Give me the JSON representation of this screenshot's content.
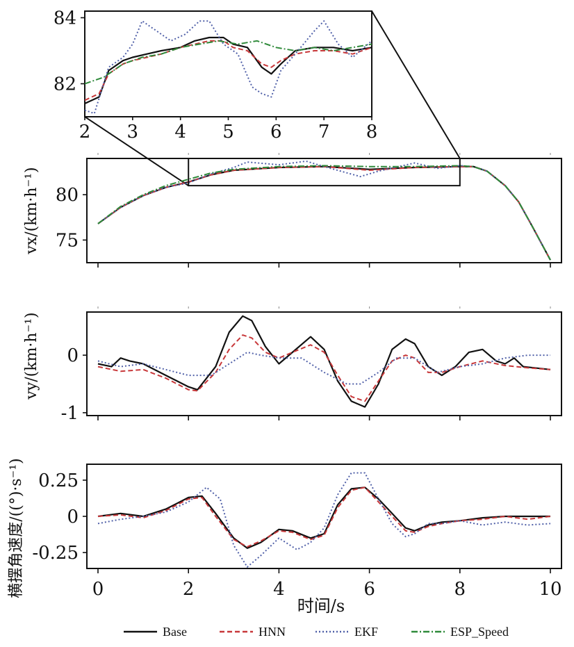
{
  "colors": {
    "Base": "#111111",
    "HNN": "#c8383a",
    "EKF": "#5060a8",
    "ESP_Speed": "#2f8a3a"
  },
  "legend": [
    {
      "name": "Base",
      "style": "solid"
    },
    {
      "name": "HNN",
      "style": "dashed"
    },
    {
      "name": "EKF",
      "style": "dotted"
    },
    {
      "name": "ESP_Speed",
      "style": "dashdot"
    }
  ],
  "xlabel": "时间/s",
  "chart_data": [
    {
      "id": "inset",
      "type": "line",
      "xlim": [
        2,
        8
      ],
      "ylim": [
        81.0,
        84.2
      ],
      "xticks": [
        2,
        3,
        4,
        5,
        6,
        7,
        8
      ],
      "yticks": [
        82,
        84
      ],
      "series": [
        {
          "name": "Base",
          "x": [
            2,
            2.3,
            2.5,
            2.8,
            3.0,
            3.3,
            3.6,
            4.0,
            4.3,
            4.6,
            4.9,
            5.1,
            5.4,
            5.7,
            5.9,
            6.1,
            6.4,
            6.8,
            7.2,
            7.6,
            8.0
          ],
          "y": [
            81.4,
            81.6,
            82.4,
            82.7,
            82.8,
            82.9,
            83.0,
            83.1,
            83.3,
            83.4,
            83.4,
            83.2,
            83.1,
            82.5,
            82.3,
            82.6,
            83.0,
            83.1,
            83.1,
            83.0,
            83.1
          ]
        },
        {
          "name": "HNN",
          "x": [
            2,
            2.3,
            2.5,
            2.8,
            3.0,
            3.3,
            3.6,
            4.0,
            4.3,
            4.6,
            4.9,
            5.1,
            5.4,
            5.7,
            5.9,
            6.1,
            6.4,
            6.8,
            7.2,
            7.6,
            8.0
          ],
          "y": [
            81.5,
            81.7,
            82.3,
            82.6,
            82.7,
            82.8,
            82.9,
            83.1,
            83.2,
            83.3,
            83.3,
            83.1,
            83.0,
            82.6,
            82.5,
            82.7,
            82.9,
            83.0,
            83.0,
            82.9,
            83.1
          ]
        },
        {
          "name": "EKF",
          "x": [
            2,
            2.2,
            2.5,
            2.8,
            3.0,
            3.2,
            3.5,
            3.8,
            4.1,
            4.4,
            4.6,
            4.9,
            5.2,
            5.5,
            5.7,
            5.9,
            6.1,
            6.4,
            6.8,
            7.0,
            7.3,
            7.6,
            8.0
          ],
          "y": [
            81.2,
            81.1,
            82.5,
            82.8,
            83.2,
            83.9,
            83.6,
            83.3,
            83.5,
            83.9,
            83.9,
            83.2,
            82.9,
            81.9,
            81.7,
            81.6,
            82.4,
            82.9,
            83.6,
            83.9,
            83.2,
            82.8,
            83.3
          ]
        },
        {
          "name": "ESP_Speed",
          "x": [
            2,
            2.4,
            2.8,
            3.2,
            3.6,
            4.0,
            4.4,
            4.8,
            5.2,
            5.6,
            6.0,
            6.4,
            6.8,
            7.2,
            7.6,
            8.0
          ],
          "y": [
            82.0,
            82.2,
            82.6,
            82.8,
            82.9,
            83.1,
            83.2,
            83.3,
            83.2,
            83.3,
            83.1,
            83.0,
            83.1,
            83.0,
            83.1,
            83.2
          ]
        }
      ]
    },
    {
      "id": "vx",
      "type": "line",
      "ylabel": "vx/(km·h⁻¹)",
      "xlim": [
        0,
        10
      ],
      "ylim": [
        72.5,
        84.0
      ],
      "yticks": [
        75,
        80
      ],
      "zoom_box": {
        "x": [
          2,
          8
        ],
        "y": [
          81.0,
          84.0
        ]
      },
      "series": [
        {
          "name": "Base",
          "x": [
            0,
            0.5,
            1.0,
            1.5,
            2.0,
            2.5,
            3.0,
            4.0,
            5.0,
            6.0,
            7.0,
            8.0,
            8.3,
            8.6,
            9.0,
            9.3,
            9.6,
            10.0
          ],
          "y": [
            76.8,
            78.6,
            79.9,
            80.8,
            81.4,
            82.2,
            82.7,
            83.0,
            83.1,
            82.8,
            83.0,
            83.1,
            83.1,
            82.6,
            81.0,
            79.2,
            76.5,
            72.8
          ]
        },
        {
          "name": "HNN",
          "x": [
            0,
            0.5,
            1.0,
            1.5,
            2.0,
            2.5,
            3.0,
            4.0,
            5.0,
            6.0,
            7.0,
            8.0,
            8.3,
            8.6,
            9.0,
            9.3,
            9.6,
            10.0
          ],
          "y": [
            76.8,
            78.6,
            79.9,
            80.8,
            81.4,
            82.2,
            82.7,
            83.0,
            83.1,
            82.7,
            83.0,
            83.1,
            83.1,
            82.6,
            81.0,
            79.2,
            76.5,
            72.8
          ]
        },
        {
          "name": "EKF",
          "x": [
            0,
            0.5,
            1.0,
            1.5,
            2.0,
            2.5,
            3.0,
            3.3,
            4.0,
            4.6,
            5.0,
            5.8,
            6.2,
            7.0,
            7.5,
            8.0,
            8.3,
            8.6,
            9.0,
            9.3,
            9.6,
            10.0
          ],
          "y": [
            76.8,
            78.6,
            79.9,
            80.8,
            81.3,
            82.3,
            83.0,
            83.6,
            83.3,
            83.7,
            83.1,
            82.0,
            82.6,
            83.5,
            82.9,
            83.2,
            83.1,
            82.6,
            81.0,
            79.2,
            76.5,
            72.8
          ]
        },
        {
          "name": "ESP_Speed",
          "x": [
            0,
            0.5,
            1.0,
            1.5,
            2.0,
            2.5,
            3.0,
            4.0,
            5.0,
            6.0,
            7.0,
            8.0,
            8.3,
            8.6,
            9.0,
            9.3,
            9.6,
            10.0
          ],
          "y": [
            76.8,
            78.7,
            80.0,
            81.0,
            81.7,
            82.4,
            82.8,
            83.1,
            83.2,
            83.1,
            83.1,
            83.2,
            83.1,
            82.6,
            81.0,
            79.2,
            76.5,
            72.8
          ]
        }
      ]
    },
    {
      "id": "vy",
      "type": "line",
      "ylabel": "vy/(km·h⁻¹)",
      "xlim": [
        0,
        10
      ],
      "ylim": [
        -1.05,
        0.75
      ],
      "yticks": [
        -1,
        0
      ],
      "series": [
        {
          "name": "Base",
          "x": [
            0,
            0.3,
            0.5,
            0.7,
            1.0,
            1.5,
            2.0,
            2.2,
            2.6,
            2.9,
            3.2,
            3.4,
            3.7,
            4.0,
            4.3,
            4.7,
            5.0,
            5.3,
            5.6,
            5.9,
            6.2,
            6.5,
            6.8,
            7.0,
            7.3,
            7.6,
            7.9,
            8.2,
            8.5,
            8.8,
            9.0,
            9.2,
            9.4,
            10.0
          ],
          "y": [
            -0.15,
            -0.2,
            -0.05,
            -0.1,
            -0.15,
            -0.35,
            -0.55,
            -0.6,
            -0.2,
            0.4,
            0.68,
            0.6,
            0.15,
            -0.15,
            0.05,
            0.32,
            0.1,
            -0.45,
            -0.8,
            -0.9,
            -0.5,
            0.1,
            0.28,
            0.2,
            -0.2,
            -0.35,
            -0.2,
            0.05,
            0.1,
            -0.1,
            -0.15,
            -0.05,
            -0.2,
            -0.25
          ]
        },
        {
          "name": "HNN",
          "x": [
            0,
            0.5,
            1.0,
            1.5,
            2.0,
            2.2,
            2.6,
            2.9,
            3.2,
            3.4,
            3.7,
            4.0,
            4.3,
            4.7,
            5.0,
            5.3,
            5.6,
            5.9,
            6.2,
            6.5,
            6.8,
            7.0,
            7.3,
            7.6,
            8.0,
            8.5,
            9.0,
            9.5,
            10.0
          ],
          "y": [
            -0.2,
            -0.28,
            -0.25,
            -0.4,
            -0.6,
            -0.62,
            -0.3,
            0.1,
            0.35,
            0.3,
            0.05,
            -0.05,
            0.05,
            0.18,
            0.05,
            -0.35,
            -0.72,
            -0.8,
            -0.45,
            -0.1,
            0.0,
            -0.05,
            -0.3,
            -0.3,
            -0.2,
            -0.1,
            -0.18,
            -0.22,
            -0.25
          ]
        },
        {
          "name": "EKF",
          "x": [
            0,
            0.5,
            1.0,
            1.5,
            2.0,
            2.5,
            3.0,
            3.3,
            3.6,
            4.0,
            4.5,
            5.0,
            5.5,
            5.8,
            6.2,
            6.6,
            7.0,
            7.5,
            8.0,
            8.5,
            9.0,
            9.5,
            10.0
          ],
          "y": [
            -0.1,
            -0.2,
            -0.15,
            -0.25,
            -0.35,
            -0.35,
            -0.1,
            0.05,
            0.0,
            -0.05,
            -0.05,
            -0.3,
            -0.5,
            -0.5,
            -0.3,
            -0.05,
            -0.05,
            -0.3,
            -0.2,
            -0.15,
            -0.05,
            0.0,
            0.0
          ]
        }
      ]
    },
    {
      "id": "yaw",
      "type": "line",
      "ylabel": "横摆角速度/((°)·s⁻¹)",
      "xlim": [
        0,
        10
      ],
      "xticks": [
        0,
        2,
        4,
        6,
        8,
        10
      ],
      "ylim": [
        -0.36,
        0.36
      ],
      "yticks": [
        -0.25,
        0,
        0.25
      ],
      "yticklabels": [
        "-0.25",
        "0",
        "0.25"
      ],
      "series": [
        {
          "name": "Base",
          "x": [
            0,
            0.5,
            1.0,
            1.5,
            2.0,
            2.3,
            2.6,
            3.0,
            3.3,
            3.6,
            4.0,
            4.3,
            4.7,
            5.0,
            5.3,
            5.6,
            5.9,
            6.2,
            6.5,
            6.8,
            7.0,
            7.3,
            7.6,
            8.0,
            8.5,
            9.0,
            9.5,
            10.0
          ],
          "y": [
            0.0,
            0.02,
            0.0,
            0.05,
            0.13,
            0.14,
            0.02,
            -0.15,
            -0.22,
            -0.18,
            -0.09,
            -0.1,
            -0.15,
            -0.12,
            0.08,
            0.19,
            0.2,
            0.12,
            0.02,
            -0.08,
            -0.1,
            -0.06,
            -0.04,
            -0.03,
            -0.01,
            0.0,
            0.0,
            0.0
          ]
        },
        {
          "name": "HNN",
          "x": [
            0,
            0.5,
            1.0,
            1.5,
            2.0,
            2.3,
            2.6,
            3.0,
            3.3,
            3.6,
            4.0,
            4.3,
            4.7,
            5.0,
            5.3,
            5.6,
            5.9,
            6.2,
            6.5,
            6.8,
            7.0,
            7.3,
            7.6,
            8.0,
            8.5,
            9.0,
            9.5,
            10.0
          ],
          "y": [
            0.0,
            0.01,
            -0.01,
            0.04,
            0.12,
            0.13,
            0.0,
            -0.16,
            -0.21,
            -0.17,
            -0.1,
            -0.11,
            -0.16,
            -0.13,
            0.06,
            0.18,
            0.2,
            0.1,
            0.0,
            -0.1,
            -0.11,
            -0.07,
            -0.05,
            -0.03,
            -0.02,
            0.0,
            -0.02,
            0.0
          ]
        },
        {
          "name": "EKF",
          "x": [
            0,
            0.5,
            1.0,
            1.5,
            2.0,
            2.4,
            2.7,
            3.0,
            3.3,
            3.6,
            4.0,
            4.4,
            4.7,
            5.0,
            5.3,
            5.6,
            5.9,
            6.2,
            6.5,
            6.8,
            7.0,
            7.3,
            7.6,
            8.0,
            8.5,
            9.0,
            9.5,
            10.0
          ],
          "y": [
            -0.05,
            -0.02,
            0.0,
            0.03,
            0.1,
            0.2,
            0.12,
            -0.2,
            -0.35,
            -0.27,
            -0.15,
            -0.23,
            -0.18,
            -0.08,
            0.15,
            0.3,
            0.3,
            0.12,
            -0.05,
            -0.14,
            -0.12,
            -0.05,
            -0.05,
            -0.03,
            -0.06,
            -0.04,
            -0.06,
            -0.05
          ]
        }
      ]
    }
  ]
}
